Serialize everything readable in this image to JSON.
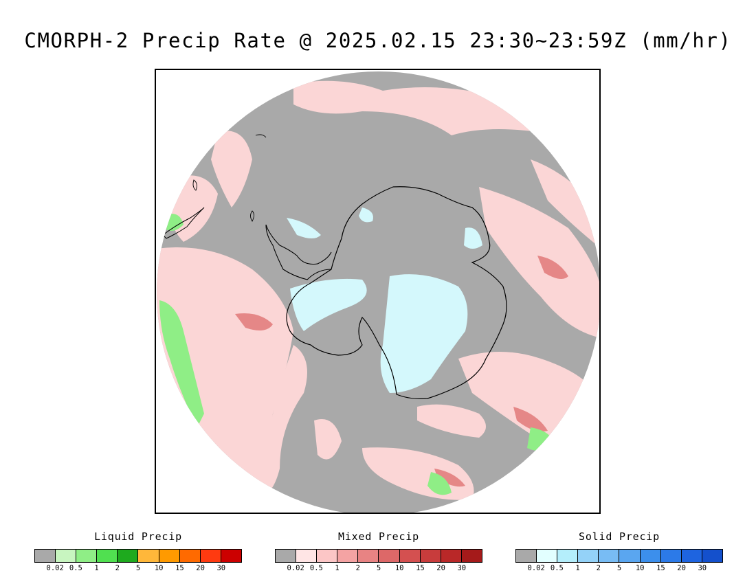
{
  "title": "CMORPH-2 Precip Rate @ 2025.02.15 23:30~23:59Z (mm/hr)",
  "colors": {
    "no_precip": "#a9a9a9",
    "background": "#ffffff",
    "coastline": "#000000"
  },
  "legends": [
    {
      "title": "Liquid Precip",
      "colors": [
        "#a9a9a9",
        "#c8f5c0",
        "#8fee86",
        "#50e050",
        "#1eaa1e",
        "#ffb73a",
        "#ff9a00",
        "#ff6a00",
        "#ff3a10",
        "#cc0000"
      ],
      "ticks": [
        "0.02",
        "0.5",
        "1",
        "2",
        "5",
        "10",
        "15",
        "20",
        "30"
      ]
    },
    {
      "title": "Mixed Precip",
      "colors": [
        "#a9a9a9",
        "#ffe5e5",
        "#fcc6c6",
        "#f4a3a3",
        "#e88383",
        "#dd6868",
        "#d45050",
        "#c83c3c",
        "#b92828",
        "#a51a1a"
      ],
      "ticks": [
        "0.02",
        "0.5",
        "1",
        "2",
        "5",
        "10",
        "15",
        "20",
        "30"
      ]
    },
    {
      "title": "Solid Precip",
      "colors": [
        "#a9a9a9",
        "#e2ffff",
        "#b4eefb",
        "#94d2f8",
        "#78bcf4",
        "#5aa6f0",
        "#3c8fec",
        "#2c7ae8",
        "#1e64e0",
        "#1450cc"
      ],
      "ticks": [
        "0.02",
        "0.5",
        "1",
        "2",
        "5",
        "10",
        "15",
        "20",
        "30"
      ]
    }
  ]
}
